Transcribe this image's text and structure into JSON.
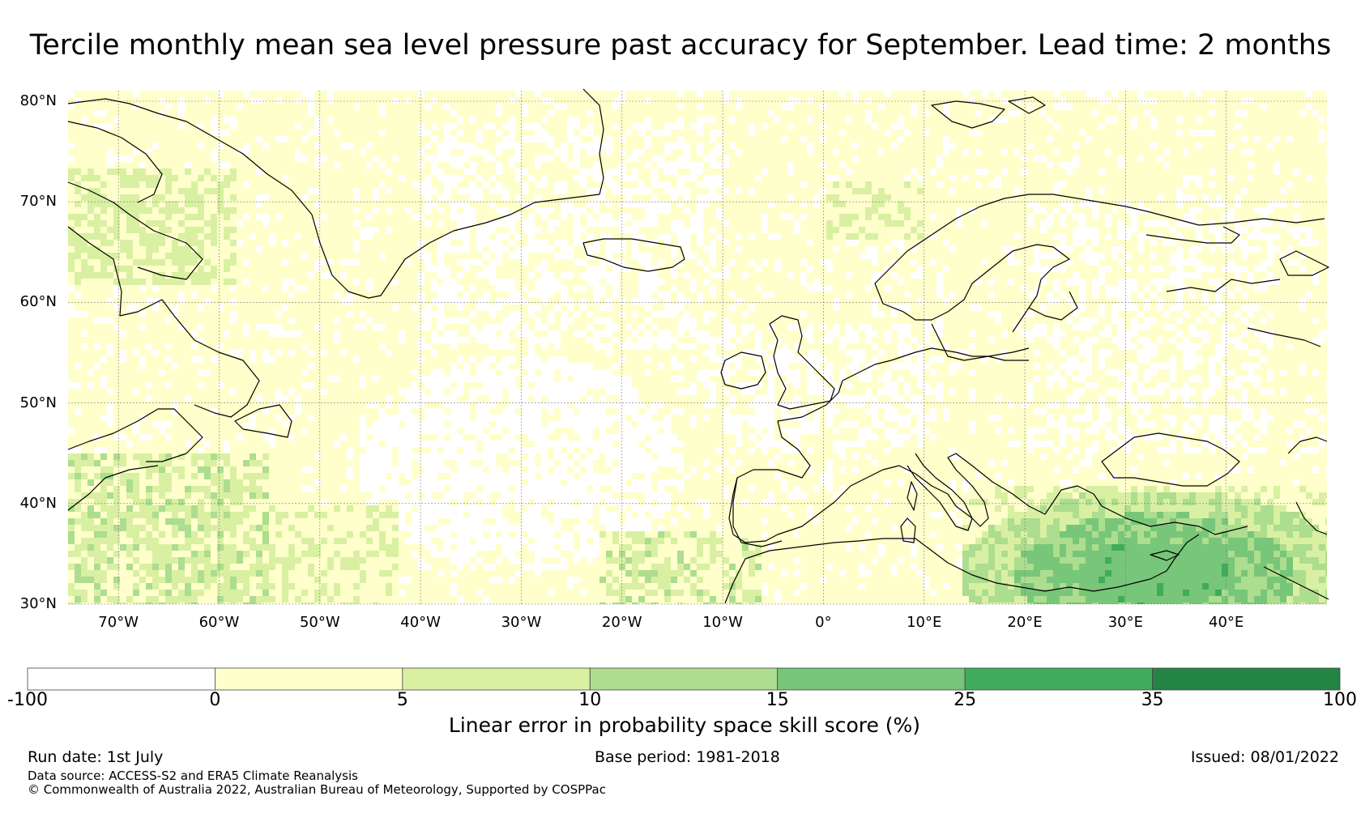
{
  "title": "Tercile monthly mean sea level pressure past accuracy for September. Lead time: 2 months",
  "map": {
    "lat_labels": [
      "80°N",
      "70°N",
      "60°N",
      "50°N",
      "40°N",
      "30°N"
    ],
    "lon_labels": [
      "70°W",
      "60°W",
      "50°W",
      "40°W",
      "30°W",
      "20°W",
      "10°W",
      "0°",
      "10°E",
      "20°E",
      "30°E",
      "40°E"
    ],
    "lat_range": [
      30,
      80
    ],
    "lon_range": [
      -75,
      50
    ],
    "grid_lines": true,
    "field_description": "LEPS skill score over North Atlantic / Europe; mostly 0-5 (light yellow), white patches (<0) over central Atlantic, 5-25 (greens) over eastern Mediterranean / Middle East and parts of eastern North America"
  },
  "colorbar": {
    "ticks": [
      "-100",
      "0",
      "5",
      "10",
      "15",
      "25",
      "35",
      "100"
    ],
    "colors": [
      "#ffffff",
      "#ffffcc",
      "#d9f0a3",
      "#addd8e",
      "#78c679",
      "#41ab5d",
      "#238443"
    ],
    "label": "Linear error in probability space skill score (%)"
  },
  "footer": {
    "run_date": "Run date: 1st July",
    "base_period": "Base period: 1981-2018",
    "issued": "Issued: 08/01/2022",
    "data_source": "Data source: ACCESS-S2 and ERA5 Climate Reanalysis",
    "copyright": "© Commonwealth of Australia 2022, Australian Bureau of Meteorology, Supported by COSPPac"
  }
}
